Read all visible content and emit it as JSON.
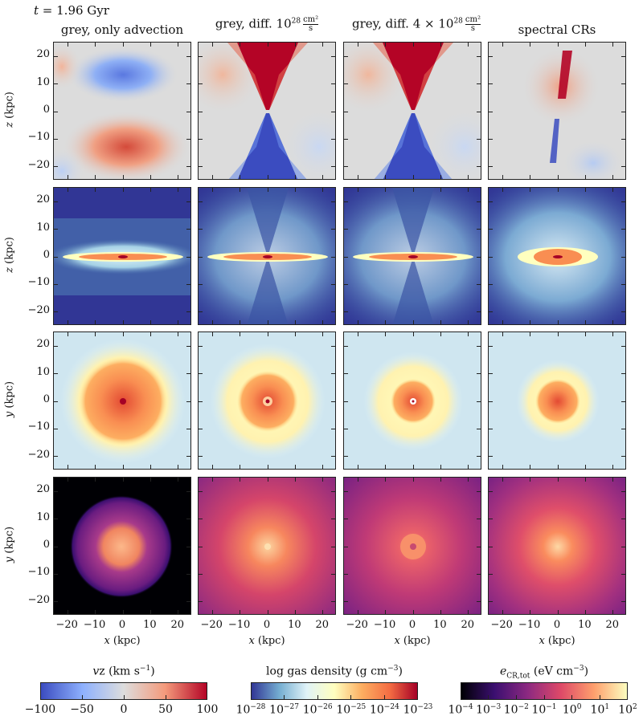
{
  "chart_data": {
    "type": "heatmap",
    "time_label": "t = 1.96 Gyr",
    "columns": [
      {
        "title": "grey, only advection"
      },
      {
        "title_prefix": "grey, diff. 10",
        "title_exp": "28",
        "unit_num": "cm²",
        "unit_den": "s"
      },
      {
        "title_prefix": "grey, diff. 4 × 10",
        "title_exp": "28",
        "unit_num": "cm²",
        "unit_den": "s"
      },
      {
        "title": "spectral CRs"
      }
    ],
    "rows": [
      {
        "quantity": "vz",
        "ylabel": "z (kpc)",
        "colormap": "coolwarm"
      },
      {
        "quantity": "gas density",
        "ylabel": "z (kpc)",
        "colormap": "RdYlBu_r"
      },
      {
        "quantity": "gas density",
        "ylabel": "y (kpc)",
        "colormap": "RdYlBu_r"
      },
      {
        "quantity": "e_CR,tot",
        "ylabel": "y (kpc)",
        "colormap": "magma"
      }
    ],
    "xlabel": "x (kpc)",
    "xlim": [
      -25,
      25
    ],
    "ylim": [
      -25,
      25
    ],
    "xticks": [
      "−20",
      "−10",
      "0",
      "10",
      "20"
    ],
    "yticks": [
      "20",
      "10",
      "0",
      "−10",
      "−20"
    ],
    "colorbars": [
      {
        "label": "vz (km s",
        "label_sup": "−1",
        "label_end": ")",
        "ticks": [
          "−100",
          "−50",
          "0",
          "50",
          "100"
        ],
        "range": [
          -100,
          100
        ],
        "colors": [
          "#3b4cc0",
          "#8db0fe",
          "#dddddd",
          "#f49a7b",
          "#b40426"
        ]
      },
      {
        "label": "log gas density (g cm",
        "label_sup": "−3",
        "label_end": ")",
        "ticks_base": "10",
        "ticks": [
          "−28",
          "−27",
          "−26",
          "−25",
          "−24",
          "−23"
        ],
        "range": [
          -28,
          -23
        ],
        "colors": [
          "#313695",
          "#74add1",
          "#e0f3f8",
          "#ffffbf",
          "#fdae61",
          "#f46d43",
          "#a50026"
        ]
      },
      {
        "label_main": "e",
        "label_sub": "CR,tot",
        "label": " (eV cm",
        "label_sup": "−3",
        "label_end": ")",
        "ticks_base": "10",
        "ticks": [
          "−4",
          "−3",
          "−2",
          "−1",
          "0",
          "1",
          "2"
        ],
        "range": [
          -4,
          2
        ],
        "colors": [
          "#000004",
          "#3b0f70",
          "#8c2981",
          "#de4968",
          "#fe9f6d",
          "#fcfdbf"
        ]
      }
    ]
  }
}
